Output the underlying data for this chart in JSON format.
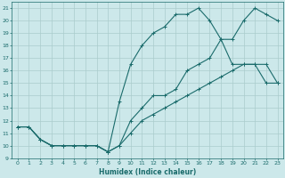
{
  "xlabel": "Humidex (Indice chaleur)",
  "ylabel": "",
  "bg_color": "#cce8ea",
  "grid_color": "#aacccc",
  "line_color": "#1a6b6b",
  "xlim": [
    -0.5,
    23.5
  ],
  "ylim": [
    9,
    21.5
  ],
  "yticks": [
    9,
    10,
    11,
    12,
    13,
    14,
    15,
    16,
    17,
    18,
    19,
    20,
    21
  ],
  "xticks": [
    0,
    1,
    2,
    3,
    4,
    5,
    6,
    7,
    8,
    9,
    10,
    11,
    12,
    13,
    14,
    15,
    16,
    17,
    18,
    19,
    20,
    21,
    22,
    23
  ],
  "line1_x": [
    0,
    1,
    2,
    3,
    4,
    5,
    6,
    7,
    8,
    9,
    10,
    11,
    12,
    13,
    14,
    15,
    16,
    17,
    18,
    19,
    20,
    21,
    22,
    23
  ],
  "line1_y": [
    11.5,
    11.5,
    10.5,
    10,
    10,
    10,
    10,
    10,
    9.5,
    10,
    12,
    13,
    14,
    14,
    14.5,
    16,
    16.5,
    17,
    18.5,
    18.5,
    20,
    21,
    20.5,
    20
  ],
  "line2_x": [
    0,
    1,
    2,
    3,
    4,
    5,
    6,
    7,
    8,
    9,
    10,
    11,
    12,
    13,
    14,
    15,
    16,
    17,
    18,
    19,
    20,
    21,
    22,
    23
  ],
  "line2_y": [
    11.5,
    11.5,
    10.5,
    10,
    10,
    10,
    10,
    10,
    9.5,
    13.5,
    16.5,
    18,
    19,
    19.5,
    20.5,
    20.5,
    21,
    20,
    18.5,
    16.5,
    16.5,
    16.5,
    15,
    15
  ],
  "line3_x": [
    0,
    1,
    2,
    3,
    4,
    5,
    6,
    7,
    8,
    9,
    10,
    11,
    12,
    13,
    14,
    15,
    16,
    17,
    18,
    19,
    20,
    21,
    22,
    23
  ],
  "line3_y": [
    11.5,
    11.5,
    10.5,
    10,
    10,
    10,
    10,
    10,
    9.5,
    10,
    11,
    12,
    12.5,
    13,
    13.5,
    14,
    14.5,
    15,
    15.5,
    16,
    16.5,
    16.5,
    16.5,
    15
  ],
  "tick_fontsize": 4.5,
  "xlabel_fontsize": 5.5,
  "lw": 0.8,
  "ms": 3.0
}
